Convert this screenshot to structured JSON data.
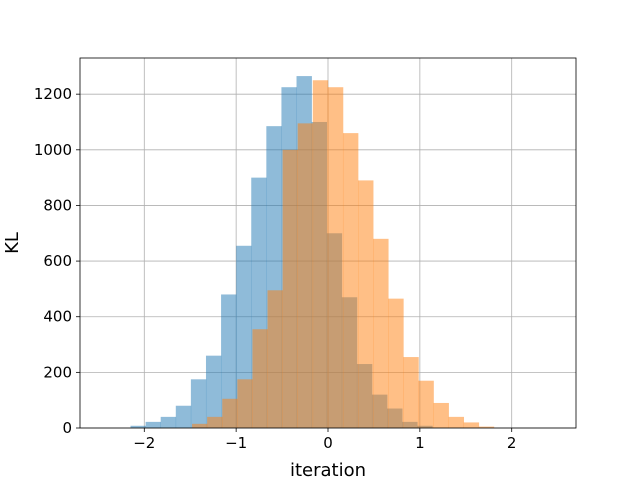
{
  "chart_data": {
    "type": "bar",
    "title": "",
    "xlabel": "iteration",
    "ylabel": "KL",
    "xlim": [
      -2.7,
      2.7
    ],
    "ylim": [
      0,
      1330
    ],
    "xticks": [
      -2,
      -1,
      0,
      1,
      2
    ],
    "yticks": [
      0,
      200,
      400,
      600,
      800,
      1000,
      1200
    ],
    "xtick_labels": [
      "−2",
      "−1",
      "0",
      "1",
      "2"
    ],
    "ytick_labels": [
      "0",
      "200",
      "400",
      "600",
      "800",
      "1000",
      "1200"
    ],
    "grid": true,
    "legend": "none",
    "series": [
      {
        "color": "#1f77b4",
        "alpha": 0.5,
        "bin_start": -2.15,
        "bin_width": 0.1643,
        "values": [
          8,
          22,
          40,
          80,
          175,
          260,
          480,
          655,
          900,
          1085,
          1225,
          1265,
          1100,
          700,
          470,
          230,
          120,
          70,
          22,
          8
        ]
      },
      {
        "color": "#ff7f0e",
        "alpha": 0.5,
        "bin_start": -1.48,
        "bin_width": 0.1643,
        "values": [
          15,
          40,
          105,
          175,
          355,
          495,
          1000,
          1095,
          1250,
          1225,
          1060,
          890,
          680,
          465,
          255,
          170,
          90,
          40,
          20,
          5
        ]
      }
    ]
  }
}
